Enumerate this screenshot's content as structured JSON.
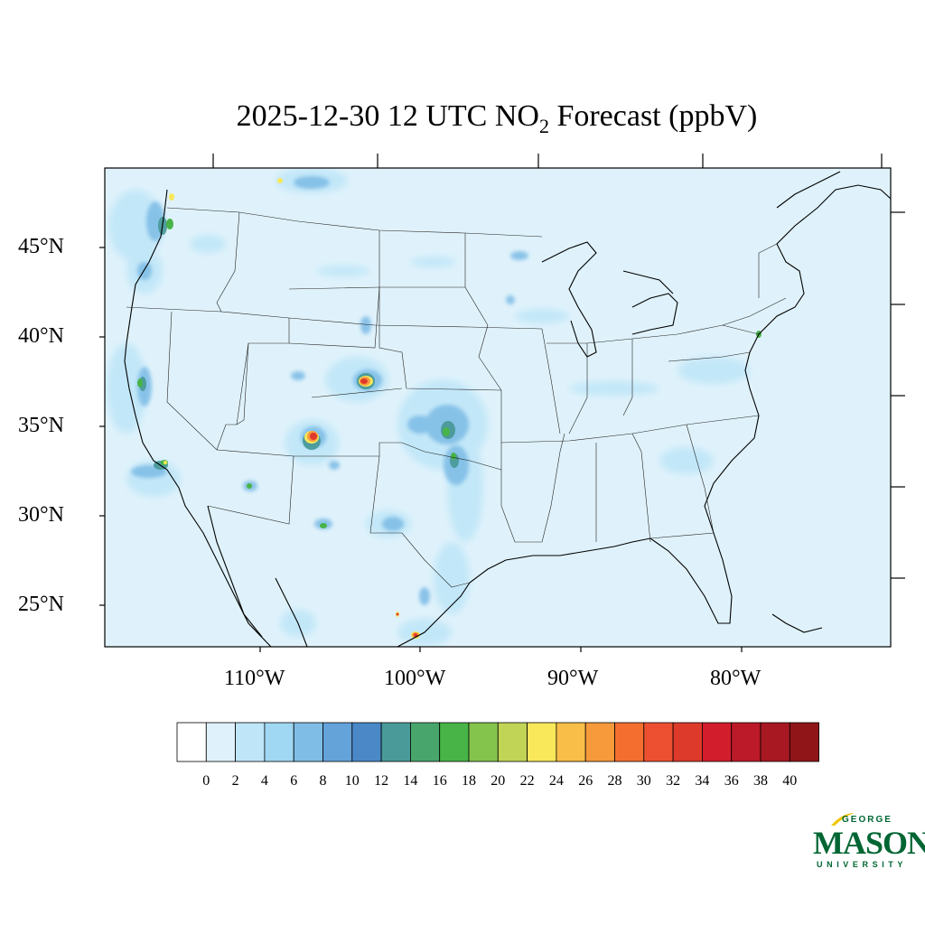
{
  "title": {
    "main": "2025-12-30 12 UTC NO",
    "subscript": "2",
    "suffix": " Forecast (ppbV)"
  },
  "map": {
    "background_color": "#dff2fb",
    "lat_labels": [
      "45°N",
      "40°N",
      "35°N",
      "30°N",
      "25°N"
    ],
    "lon_labels": [
      "110°W",
      "100°W",
      "90°W",
      "80°W"
    ]
  },
  "colorbar": {
    "labels": [
      "0",
      "2",
      "4",
      "6",
      "8",
      "10",
      "12",
      "14",
      "16",
      "18",
      "20",
      "22",
      "24",
      "26",
      "28",
      "30",
      "32",
      "34",
      "36",
      "38",
      "40"
    ],
    "colors": [
      "#ffffff",
      "#dff2fb",
      "#bfe6f8",
      "#a0d8f3",
      "#80bde6",
      "#64a3da",
      "#4a88c8",
      "#4a9a9a",
      "#48a66c",
      "#48b448",
      "#84c34c",
      "#c2d456",
      "#f8e85a",
      "#f8be48",
      "#f79a3c",
      "#f46e30",
      "#ec5030",
      "#de3a2c",
      "#d21e2c",
      "#bc1a28",
      "#a81822",
      "#8f1518"
    ]
  },
  "logo": {
    "top": "GEORGE",
    "main": "MASON",
    "bottom": "UNIVERSITY"
  }
}
